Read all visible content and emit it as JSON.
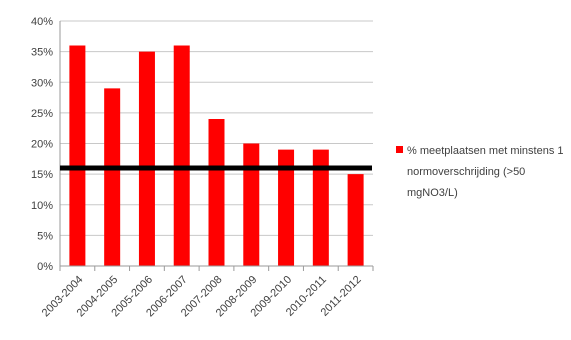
{
  "chart_data": {
    "type": "bar",
    "categories": [
      "2003-2004",
      "2004-2005",
      "2005-2006",
      "2006-2007",
      "2007-2008",
      "2008-2009",
      "2009-2010",
      "2010-2011",
      "2011-2012"
    ],
    "series": [
      {
        "name": "% meetplaatsen met minstens 1 normoverschrijding (>50 mgNO3/L)",
        "values": [
          36,
          29,
          35,
          36,
          24,
          20,
          19,
          19,
          15
        ],
        "color": "#ff0000"
      }
    ],
    "reference_line": {
      "value": 16,
      "color": "#000000"
    },
    "yticks": [
      "0%",
      "5%",
      "10%",
      "15%",
      "20%",
      "25%",
      "30%",
      "35%",
      "40%"
    ],
    "ylim": [
      0,
      40
    ],
    "grid": true,
    "legend_position": "right",
    "title": "",
    "xlabel": "",
    "ylabel": ""
  }
}
